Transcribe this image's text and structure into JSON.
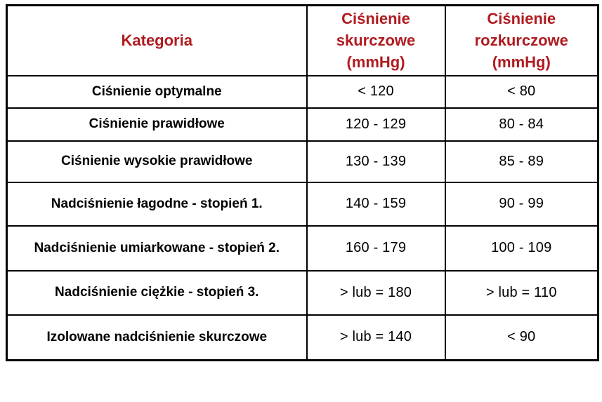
{
  "table": {
    "headers": {
      "category": "Kategoria",
      "systolic": "Ciśnienie skurczowe (mmHg)",
      "diastolic": "Ciśnienie rozkurczowe (mmHg)"
    },
    "rows": [
      {
        "category": "Ciśnienie optymalne",
        "systolic": "< 120",
        "diastolic": "< 80"
      },
      {
        "category": "Ciśnienie prawidłowe",
        "systolic": "120 - 129",
        "diastolic": "80 - 84"
      },
      {
        "category": "Ciśnienie wysokie prawidłowe",
        "systolic": "130 - 139",
        "diastolic": "85 - 89"
      },
      {
        "category": "Nadciśnienie łagodne - stopień 1.",
        "systolic": "140 - 159",
        "diastolic": "90 - 99"
      },
      {
        "category": "Nadciśnienie umiarkowane  - stopień 2.",
        "systolic": "160 - 179",
        "diastolic": "100 - 109"
      },
      {
        "category": "Nadciśnienie ciężkie - stopień 3.",
        "systolic": "> lub = 180",
        "diastolic": "> lub = 110"
      },
      {
        "category": "Izolowane nadciśnienie skurczowe",
        "systolic": "> lub = 140",
        "diastolic": "< 90"
      }
    ],
    "colors": {
      "header_text": "#b01b20",
      "body_text": "#000000",
      "border": "#000000",
      "background": "#ffffff"
    }
  }
}
